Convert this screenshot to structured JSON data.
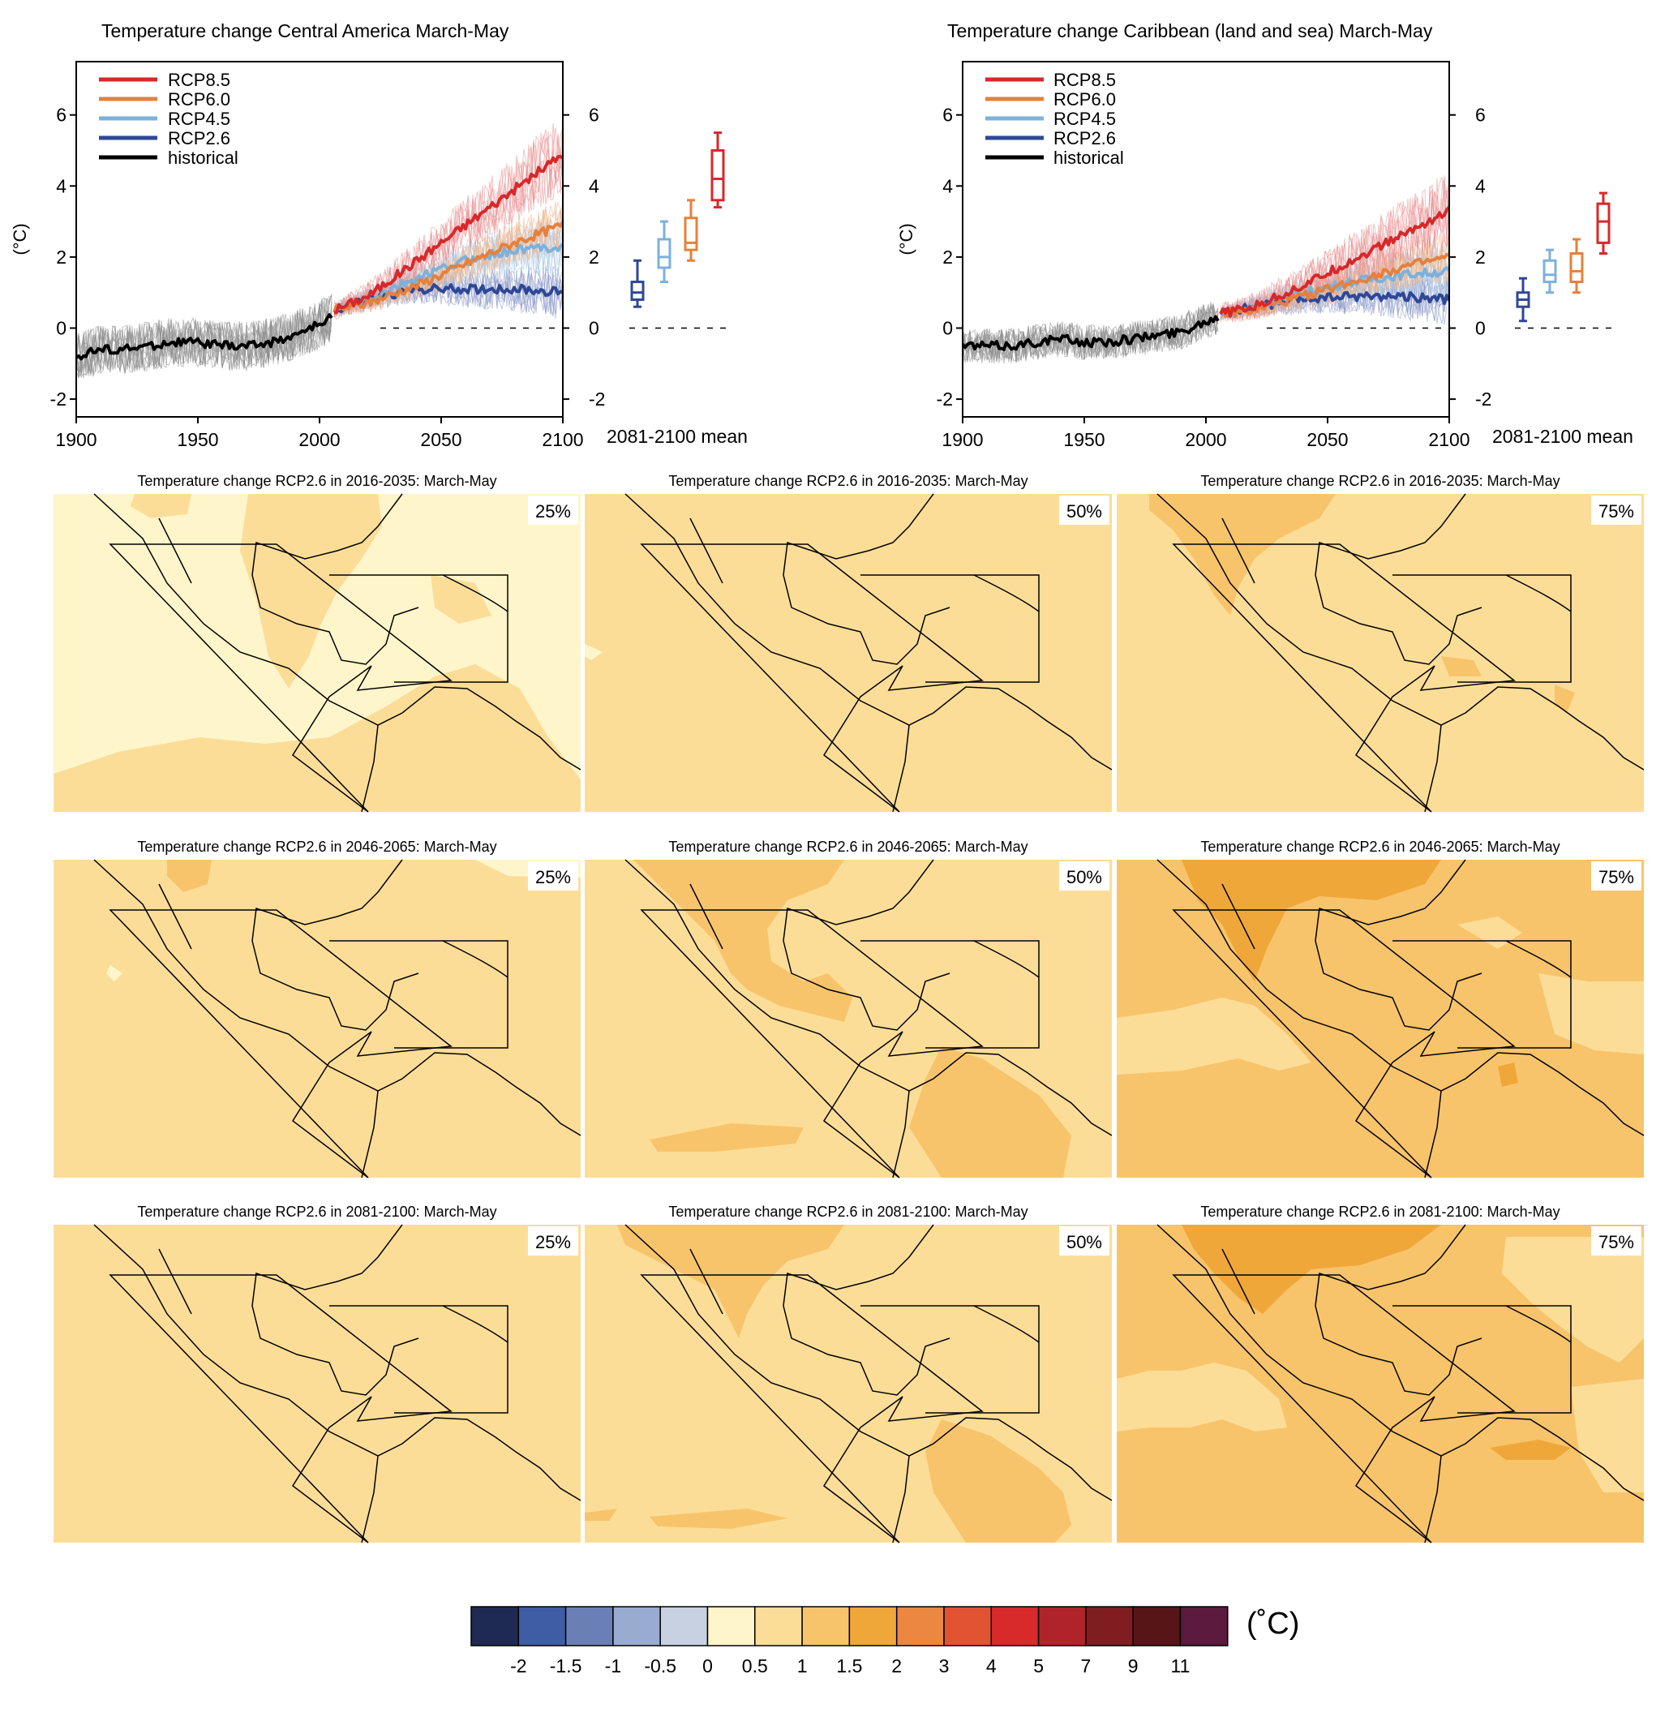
{
  "chart_data": [
    {
      "type": "line",
      "title": "Temperature change Central America March-May",
      "ylabel": "(°C)",
      "xlim": [
        1900,
        2100
      ],
      "ylim": [
        -2.5,
        7.5
      ],
      "x_ticks": [
        "1900",
        "1950",
        "2000",
        "2050",
        "2100"
      ],
      "y_ticks": [
        "-2",
        "0",
        "2",
        "4",
        "6"
      ],
      "box_axis_label": "2081-2100 mean",
      "legend_position": "top-left",
      "series": [
        {
          "name": "RCP8.5",
          "color": "#d7282a",
          "x": [
            2006,
            2020,
            2040,
            2060,
            2080,
            2100
          ],
          "values": [
            0.5,
            0.9,
            1.9,
            2.9,
            3.9,
            4.9
          ]
        },
        {
          "name": "RCP6.0",
          "color": "#e6803b",
          "x": [
            2006,
            2020,
            2040,
            2060,
            2080,
            2100
          ],
          "values": [
            0.5,
            0.7,
            1.2,
            1.8,
            2.4,
            2.9
          ]
        },
        {
          "name": "RCP4.5",
          "color": "#7cb1dc",
          "x": [
            2006,
            2020,
            2040,
            2060,
            2080,
            2100
          ],
          "values": [
            0.5,
            0.8,
            1.4,
            1.9,
            2.2,
            2.3
          ]
        },
        {
          "name": "RCP2.6",
          "color": "#2e4797",
          "x": [
            2006,
            2020,
            2040,
            2060,
            2080,
            2100
          ],
          "values": [
            0.5,
            0.8,
            1.1,
            1.1,
            1.1,
            1.0
          ]
        },
        {
          "name": "historical",
          "color": "#000000",
          "x": [
            1900,
            1910,
            1920,
            1930,
            1940,
            1950,
            1960,
            1970,
            1980,
            1990,
            2000,
            2005
          ],
          "values": [
            -0.8,
            -0.6,
            -0.6,
            -0.5,
            -0.4,
            -0.4,
            -0.5,
            -0.5,
            -0.4,
            -0.2,
            0.1,
            0.3
          ]
        }
      ],
      "boxes_2081_2100": [
        {
          "scenario": "RCP2.6",
          "color": "#2e4797",
          "whisker_low": 0.6,
          "q1": 0.8,
          "median": 1.0,
          "q3": 1.3,
          "whisker_high": 1.9
        },
        {
          "scenario": "RCP4.5",
          "color": "#7cb1dc",
          "whisker_low": 1.3,
          "q1": 1.7,
          "median": 2.0,
          "q3": 2.5,
          "whisker_high": 3.0
        },
        {
          "scenario": "RCP6.0",
          "color": "#e6803b",
          "whisker_low": 1.9,
          "q1": 2.2,
          "median": 2.4,
          "q3": 3.1,
          "whisker_high": 3.6
        },
        {
          "scenario": "RCP8.5",
          "color": "#d7282a",
          "whisker_low": 3.4,
          "q1": 3.6,
          "median": 4.2,
          "q3": 5.0,
          "whisker_high": 5.5
        }
      ]
    },
    {
      "type": "line",
      "title": "Temperature change Caribbean (land and sea) March-May",
      "ylabel": "(°C)",
      "xlim": [
        1900,
        2100
      ],
      "ylim": [
        -2.5,
        7.5
      ],
      "x_ticks": [
        "1900",
        "1950",
        "2000",
        "2050",
        "2100"
      ],
      "y_ticks": [
        "-2",
        "0",
        "2",
        "4",
        "6"
      ],
      "box_axis_label": "2081-2100 mean",
      "legend_position": "top-left",
      "series": [
        {
          "name": "RCP8.5",
          "color": "#d7282a",
          "x": [
            2006,
            2020,
            2040,
            2060,
            2080,
            2100
          ],
          "values": [
            0.4,
            0.6,
            1.2,
            1.9,
            2.6,
            3.3
          ]
        },
        {
          "name": "RCP6.0",
          "color": "#e6803b",
          "x": [
            2006,
            2020,
            2040,
            2060,
            2080,
            2100
          ],
          "values": [
            0.4,
            0.5,
            0.9,
            1.3,
            1.7,
            2.0
          ]
        },
        {
          "name": "RCP4.5",
          "color": "#7cb1dc",
          "x": [
            2006,
            2020,
            2040,
            2060,
            2080,
            2100
          ],
          "values": [
            0.4,
            0.6,
            1.0,
            1.3,
            1.5,
            1.6
          ]
        },
        {
          "name": "RCP2.6",
          "color": "#2e4797",
          "x": [
            2006,
            2020,
            2040,
            2060,
            2080,
            2100
          ],
          "values": [
            0.4,
            0.6,
            0.8,
            0.9,
            0.9,
            0.8
          ]
        },
        {
          "name": "historical",
          "color": "#000000",
          "x": [
            1900,
            1910,
            1920,
            1930,
            1940,
            1950,
            1960,
            1970,
            1980,
            1990,
            2000,
            2005
          ],
          "values": [
            -0.5,
            -0.5,
            -0.5,
            -0.4,
            -0.3,
            -0.4,
            -0.4,
            -0.3,
            -0.2,
            -0.1,
            0.2,
            0.3
          ]
        }
      ],
      "boxes_2081_2100": [
        {
          "scenario": "RCP2.6",
          "color": "#2e4797",
          "whisker_low": 0.2,
          "q1": 0.6,
          "median": 0.8,
          "q3": 1.0,
          "whisker_high": 1.4
        },
        {
          "scenario": "RCP4.5",
          "color": "#7cb1dc",
          "whisker_low": 1.0,
          "q1": 1.3,
          "median": 1.5,
          "q3": 1.9,
          "whisker_high": 2.2
        },
        {
          "scenario": "RCP6.0",
          "color": "#e6803b",
          "whisker_low": 1.0,
          "q1": 1.3,
          "median": 1.6,
          "q3": 2.1,
          "whisker_high": 2.5
        },
        {
          "scenario": "RCP8.5",
          "color": "#d7282a",
          "whisker_low": 2.1,
          "q1": 2.4,
          "median": 3.0,
          "q3": 3.5,
          "whisker_high": 3.8
        }
      ]
    },
    {
      "type": "heatmap",
      "description_level": "map grid",
      "rows": [
        {
          "period": "2016-2035",
          "title": "Temperature change RCP2.6 in 2016-2035: March-May"
        },
        {
          "period": "2046-2065",
          "title": "Temperature change RCP2.6 in 2046-2065: March-May"
        },
        {
          "period": "2081-2100",
          "title": "Temperature change RCP2.6 in 2081-2100: March-May"
        }
      ],
      "percentiles": [
        "25%",
        "50%",
        "75%"
      ],
      "dominant_class": [
        [
          "0.5",
          "0.5",
          "0.5"
        ],
        [
          "0.5",
          "0.5",
          "1"
        ],
        [
          "0.5",
          "0.5",
          "1"
        ]
      ]
    }
  ],
  "colorbar": {
    "unit": "(˚C)",
    "colors": [
      "#1f2a53",
      "#3f5da5",
      "#6a7fb6",
      "#9aabd1",
      "#c8d1e1",
      "#fef5cb",
      "#fcdd98",
      "#f8c46b",
      "#f0a73a",
      "#eb8740",
      "#e25332",
      "#d82a2a",
      "#b1232a",
      "#7f1d20",
      "#581518",
      "#5b1a3e"
    ],
    "labels": [
      "-2",
      "-1.5",
      "-1",
      "-0.5",
      "0",
      "0.5",
      "1",
      "1.5",
      "2",
      "3",
      "4",
      "5",
      "7",
      "9",
      "11"
    ]
  }
}
